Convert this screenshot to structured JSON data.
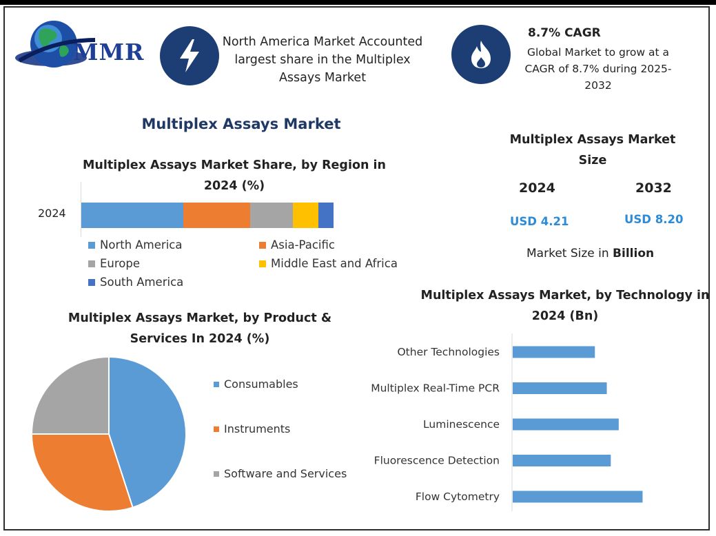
{
  "brand": {
    "logo_text": "MMR"
  },
  "highlights": {
    "region_text": "North America Market Accounted largest share in the Multiplex Assays Market",
    "cagr_title": "8.7% CAGR",
    "cagr_text": "Global Market to grow at a CAGR of 8.7% during 2025-2032"
  },
  "main_title": "Multiplex Assays Market",
  "colors": {
    "north_america": "#5b9bd5",
    "asia_pacific": "#ed7d31",
    "europe": "#a5a5a5",
    "mea": "#ffc000",
    "south_america": "#4472c4",
    "value_blue": "#2e8bd6",
    "icon_circle": "#1c3e74",
    "title_navy": "#1f3864"
  },
  "market_size": {
    "title": "Multiplex Assays Market Size",
    "year_a": "2024",
    "year_b": "2032",
    "value_a": "USD 4.21",
    "value_b": "USD 8.20",
    "note_prefix": "Market Size in",
    "note_unit": "Billion"
  },
  "chart_data": [
    {
      "type": "bar",
      "orientation": "horizontal-stacked",
      "title": "Multiplex Assays Market Share, by Region in 2024 (%)",
      "categories": [
        "2024"
      ],
      "series": [
        {
          "name": "North America",
          "values": [
            40.5
          ]
        },
        {
          "name": "Asia-Pacific",
          "values": [
            26.5
          ]
        },
        {
          "name": "Europe",
          "values": [
            17
          ]
        },
        {
          "name": "Middle East and Africa",
          "values": [
            10
          ]
        },
        {
          "name": "South America",
          "values": [
            6
          ]
        }
      ],
      "legend": "bottom"
    },
    {
      "type": "pie",
      "title": "Multiplex Assays Market, by Product & Services In 2024 (%)",
      "labels": [
        "Consumables",
        "Instruments",
        "Software and Services"
      ],
      "values": [
        45,
        30,
        25
      ],
      "legend": "right"
    },
    {
      "type": "bar",
      "orientation": "horizontal",
      "title": "Multiplex Assays Market, by Technology in 2024 (Bn)",
      "categories": [
        "Other Technologies",
        "Multiplex Real-Time PCR",
        "Luminescence",
        "Fluorescence Detection",
        "Flow Cytometry"
      ],
      "values": [
        0.62,
        0.71,
        0.8,
        0.74,
        0.98
      ],
      "xlim": [
        0,
        1.3
      ],
      "grid": false
    }
  ]
}
